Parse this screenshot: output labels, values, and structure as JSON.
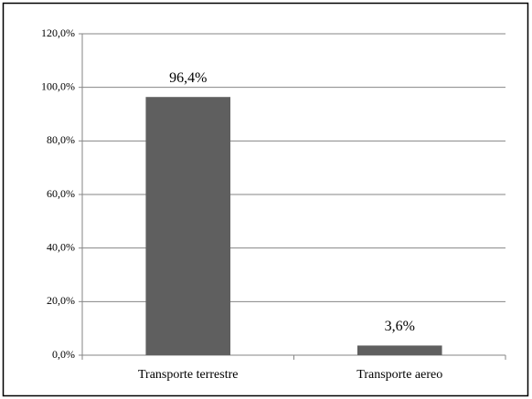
{
  "chart_data": {
    "type": "bar",
    "categories": [
      "Transporte terrestre",
      "Transporte aereo"
    ],
    "values": [
      96.4,
      3.6
    ],
    "value_labels": [
      "96,4%",
      "3,6%"
    ],
    "color": "#5f5f5f",
    "ylim": [
      0,
      120
    ],
    "yticks": [
      {
        "value": 0,
        "label": "0,0%"
      },
      {
        "value": 20,
        "label": "20,0%"
      },
      {
        "value": 40,
        "label": "40,0%"
      },
      {
        "value": 60,
        "label": "60,0%"
      },
      {
        "value": 80,
        "label": "80,0%"
      },
      {
        "value": 100,
        "label": "100,0%"
      },
      {
        "value": 120,
        "label": "120,0%"
      }
    ],
    "grid": true
  }
}
